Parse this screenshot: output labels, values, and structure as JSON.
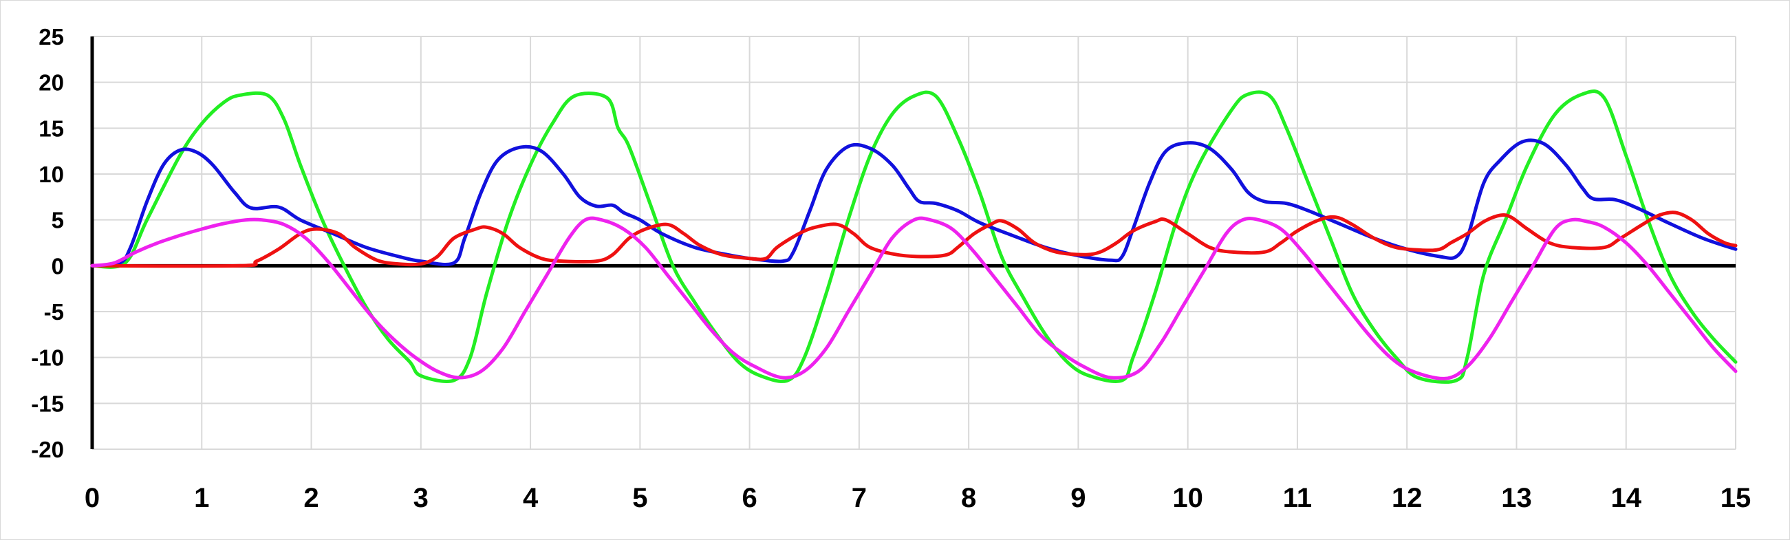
{
  "chart_data": {
    "type": "line",
    "title": "",
    "xlabel": "",
    "ylabel": "",
    "xlim": [
      0,
      15
    ],
    "ylim": [
      -20,
      25
    ],
    "x_ticks": [
      "0",
      "1",
      "2",
      "3",
      "4",
      "5",
      "6",
      "7",
      "8",
      "9",
      "10",
      "11",
      "12",
      "13",
      "14",
      "15"
    ],
    "y_ticks": [
      "25",
      "20",
      "15",
      "10",
      "5",
      "0",
      "-5",
      "-10",
      "-15",
      "-20"
    ],
    "grid": true,
    "legend": "none",
    "colors": {
      "grid": "#d9d9d9",
      "axis": "#000000",
      "red": "#ee1111",
      "green": "#22ee22",
      "blue": "#1111dd",
      "magenta": "#ee22ee"
    },
    "series": [
      {
        "color": "#22ee22",
        "points": [
          [
            0,
            0
          ],
          [
            0.3,
            0.3
          ],
          [
            0.5,
            5
          ],
          [
            0.8,
            12
          ],
          [
            1.0,
            15.5
          ],
          [
            1.2,
            17.8
          ],
          [
            1.35,
            18.6
          ],
          [
            1.6,
            18.6
          ],
          [
            1.75,
            16
          ],
          [
            1.9,
            11
          ],
          [
            2.1,
            5
          ],
          [
            2.3,
            0
          ],
          [
            2.5,
            -4.5
          ],
          [
            2.7,
            -8
          ],
          [
            2.9,
            -10.5
          ],
          [
            3.0,
            -12
          ],
          [
            3.3,
            -12.5
          ],
          [
            3.45,
            -10
          ],
          [
            3.6,
            -3
          ],
          [
            3.8,
            5
          ],
          [
            4.0,
            11
          ],
          [
            4.2,
            15.5
          ],
          [
            4.4,
            18.5
          ],
          [
            4.7,
            18.3
          ],
          [
            4.8,
            15
          ],
          [
            4.9,
            13
          ],
          [
            5.1,
            6.5
          ],
          [
            5.3,
            0
          ],
          [
            5.5,
            -4
          ],
          [
            5.7,
            -7.5
          ],
          [
            5.9,
            -10.5
          ],
          [
            6.1,
            -12
          ],
          [
            6.35,
            -12.5
          ],
          [
            6.5,
            -10
          ],
          [
            6.7,
            -3
          ],
          [
            6.9,
            5
          ],
          [
            7.1,
            12
          ],
          [
            7.3,
            16.5
          ],
          [
            7.5,
            18.5
          ],
          [
            7.7,
            18.5
          ],
          [
            7.9,
            14
          ],
          [
            8.1,
            8
          ],
          [
            8.3,
            1
          ],
          [
            8.5,
            -3.5
          ],
          [
            8.7,
            -7.5
          ],
          [
            8.9,
            -10.5
          ],
          [
            9.1,
            -12
          ],
          [
            9.4,
            -12.5
          ],
          [
            9.5,
            -10
          ],
          [
            9.7,
            -3
          ],
          [
            9.9,
            5
          ],
          [
            10.1,
            11
          ],
          [
            10.4,
            17
          ],
          [
            10.55,
            18.7
          ],
          [
            10.75,
            18.5
          ],
          [
            10.9,
            15
          ],
          [
            11.1,
            9
          ],
          [
            11.3,
            3
          ],
          [
            11.5,
            -3
          ],
          [
            11.7,
            -7
          ],
          [
            11.9,
            -10
          ],
          [
            12.1,
            -12.2
          ],
          [
            12.45,
            -12.5
          ],
          [
            12.55,
            -10
          ],
          [
            12.7,
            -1
          ],
          [
            12.9,
            5
          ],
          [
            13.1,
            11
          ],
          [
            13.35,
            16.5
          ],
          [
            13.6,
            18.7
          ],
          [
            13.8,
            18.3
          ],
          [
            14.0,
            12
          ],
          [
            14.2,
            5
          ],
          [
            14.4,
            -1
          ],
          [
            14.6,
            -5
          ],
          [
            14.8,
            -8
          ],
          [
            15.0,
            -10.5
          ]
        ]
      },
      {
        "color": "#1111dd",
        "points": [
          [
            0,
            0
          ],
          [
            0.25,
            0.3
          ],
          [
            0.35,
            2
          ],
          [
            0.5,
            7
          ],
          [
            0.65,
            11
          ],
          [
            0.8,
            12.6
          ],
          [
            0.95,
            12.4
          ],
          [
            1.1,
            11
          ],
          [
            1.3,
            8
          ],
          [
            1.45,
            6.3
          ],
          [
            1.7,
            6.4
          ],
          [
            1.9,
            5
          ],
          [
            2.2,
            3.5
          ],
          [
            2.5,
            2
          ],
          [
            2.8,
            1
          ],
          [
            3.0,
            0.5
          ],
          [
            3.3,
            0.3
          ],
          [
            3.4,
            3
          ],
          [
            3.55,
            8
          ],
          [
            3.7,
            11.5
          ],
          [
            3.9,
            12.9
          ],
          [
            4.1,
            12.5
          ],
          [
            4.3,
            10
          ],
          [
            4.45,
            7.5
          ],
          [
            4.6,
            6.5
          ],
          [
            4.75,
            6.6
          ],
          [
            4.85,
            5.8
          ],
          [
            5.0,
            5
          ],
          [
            5.2,
            3.5
          ],
          [
            5.5,
            2
          ],
          [
            5.8,
            1.2
          ],
          [
            6.0,
            0.8
          ],
          [
            6.3,
            0.5
          ],
          [
            6.4,
            1.5
          ],
          [
            6.55,
            6
          ],
          [
            6.7,
            10.5
          ],
          [
            6.9,
            13
          ],
          [
            7.1,
            12.8
          ],
          [
            7.3,
            11
          ],
          [
            7.45,
            8.5
          ],
          [
            7.55,
            7
          ],
          [
            7.7,
            6.8
          ],
          [
            7.9,
            6
          ],
          [
            8.1,
            4.7
          ],
          [
            8.4,
            3.3
          ],
          [
            8.7,
            2
          ],
          [
            9.0,
            1.1
          ],
          [
            9.3,
            0.6
          ],
          [
            9.4,
            1
          ],
          [
            9.5,
            4
          ],
          [
            9.65,
            9
          ],
          [
            9.8,
            12.5
          ],
          [
            10.0,
            13.4
          ],
          [
            10.2,
            12.8
          ],
          [
            10.4,
            10.5
          ],
          [
            10.55,
            8
          ],
          [
            10.7,
            7
          ],
          [
            10.9,
            6.8
          ],
          [
            11.1,
            6
          ],
          [
            11.4,
            4.5
          ],
          [
            11.7,
            3
          ],
          [
            12.0,
            1.8
          ],
          [
            12.3,
            1
          ],
          [
            12.45,
            1
          ],
          [
            12.55,
            3
          ],
          [
            12.7,
            9
          ],
          [
            12.85,
            11.5
          ],
          [
            13.05,
            13.5
          ],
          [
            13.25,
            13.3
          ],
          [
            13.45,
            11
          ],
          [
            13.6,
            8.5
          ],
          [
            13.7,
            7.3
          ],
          [
            13.9,
            7.2
          ],
          [
            14.1,
            6.3
          ],
          [
            14.4,
            4.6
          ],
          [
            14.7,
            3
          ],
          [
            15.0,
            1.8
          ]
        ]
      },
      {
        "color": "#ee1111",
        "points": [
          [
            0,
            0
          ],
          [
            1.35,
            0
          ],
          [
            1.5,
            0.5
          ],
          [
            1.7,
            1.8
          ],
          [
            1.9,
            3.5
          ],
          [
            2.05,
            4
          ],
          [
            2.25,
            3.5
          ],
          [
            2.4,
            2
          ],
          [
            2.6,
            0.6
          ],
          [
            2.8,
            0.2
          ],
          [
            3.0,
            0.2
          ],
          [
            3.15,
            1
          ],
          [
            3.3,
            3
          ],
          [
            3.5,
            4
          ],
          [
            3.6,
            4.2
          ],
          [
            3.75,
            3.5
          ],
          [
            3.9,
            2
          ],
          [
            4.1,
            0.8
          ],
          [
            4.3,
            0.5
          ],
          [
            4.6,
            0.5
          ],
          [
            4.75,
            1.2
          ],
          [
            4.9,
            3
          ],
          [
            5.05,
            4
          ],
          [
            5.25,
            4.5
          ],
          [
            5.4,
            3.5
          ],
          [
            5.55,
            2.2
          ],
          [
            5.75,
            1.2
          ],
          [
            6.0,
            0.8
          ],
          [
            6.15,
            0.8
          ],
          [
            6.25,
            2
          ],
          [
            6.45,
            3.5
          ],
          [
            6.6,
            4.2
          ],
          [
            6.8,
            4.5
          ],
          [
            6.95,
            3.5
          ],
          [
            7.1,
            2
          ],
          [
            7.35,
            1.2
          ],
          [
            7.6,
            1
          ],
          [
            7.8,
            1.2
          ],
          [
            7.9,
            2
          ],
          [
            8.05,
            3.5
          ],
          [
            8.2,
            4.5
          ],
          [
            8.3,
            4.9
          ],
          [
            8.45,
            4
          ],
          [
            8.6,
            2.5
          ],
          [
            8.8,
            1.5
          ],
          [
            9.05,
            1.2
          ],
          [
            9.2,
            1.5
          ],
          [
            9.35,
            2.5
          ],
          [
            9.5,
            3.8
          ],
          [
            9.7,
            4.8
          ],
          [
            9.8,
            5
          ],
          [
            10.0,
            3.5
          ],
          [
            10.2,
            2
          ],
          [
            10.4,
            1.5
          ],
          [
            10.7,
            1.5
          ],
          [
            10.85,
            2.5
          ],
          [
            11.0,
            3.8
          ],
          [
            11.2,
            5
          ],
          [
            11.35,
            5.3
          ],
          [
            11.5,
            4.5
          ],
          [
            11.7,
            3
          ],
          [
            11.9,
            2
          ],
          [
            12.15,
            1.7
          ],
          [
            12.3,
            1.8
          ],
          [
            12.4,
            2.5
          ],
          [
            12.55,
            3.5
          ],
          [
            12.7,
            4.8
          ],
          [
            12.85,
            5.5
          ],
          [
            12.95,
            5.3
          ],
          [
            13.1,
            4
          ],
          [
            13.3,
            2.5
          ],
          [
            13.5,
            2
          ],
          [
            13.8,
            2
          ],
          [
            13.95,
            3
          ],
          [
            14.15,
            4.5
          ],
          [
            14.3,
            5.5
          ],
          [
            14.45,
            5.8
          ],
          [
            14.6,
            5
          ],
          [
            14.75,
            3.5
          ],
          [
            14.9,
            2.5
          ],
          [
            15.0,
            2.2
          ]
        ]
      },
      {
        "color": "#ee22ee",
        "points": [
          [
            0,
            0
          ],
          [
            0.2,
            0.3
          ],
          [
            0.4,
            1.5
          ],
          [
            0.6,
            2.5
          ],
          [
            0.8,
            3.3
          ],
          [
            1.0,
            4
          ],
          [
            1.2,
            4.6
          ],
          [
            1.4,
            5
          ],
          [
            1.55,
            5
          ],
          [
            1.75,
            4.5
          ],
          [
            1.95,
            3
          ],
          [
            2.15,
            0.5
          ],
          [
            2.35,
            -2.5
          ],
          [
            2.55,
            -5.5
          ],
          [
            2.75,
            -8
          ],
          [
            2.95,
            -10
          ],
          [
            3.15,
            -11.5
          ],
          [
            3.35,
            -12.2
          ],
          [
            3.55,
            -11.5
          ],
          [
            3.75,
            -9
          ],
          [
            3.95,
            -5
          ],
          [
            4.15,
            -1
          ],
          [
            4.35,
            3
          ],
          [
            4.5,
            5
          ],
          [
            4.65,
            5
          ],
          [
            4.85,
            4
          ],
          [
            5.05,
            2
          ],
          [
            5.25,
            -1
          ],
          [
            5.45,
            -4
          ],
          [
            5.65,
            -7
          ],
          [
            5.85,
            -9.5
          ],
          [
            6.05,
            -11
          ],
          [
            6.3,
            -12.2
          ],
          [
            6.5,
            -11.5
          ],
          [
            6.7,
            -9
          ],
          [
            6.9,
            -5
          ],
          [
            7.1,
            -1
          ],
          [
            7.3,
            3
          ],
          [
            7.5,
            5
          ],
          [
            7.65,
            5
          ],
          [
            7.85,
            4
          ],
          [
            8.05,
            1.5
          ],
          [
            8.25,
            -1.5
          ],
          [
            8.45,
            -4.5
          ],
          [
            8.65,
            -7.5
          ],
          [
            8.85,
            -9.5
          ],
          [
            9.05,
            -11
          ],
          [
            9.3,
            -12.2
          ],
          [
            9.55,
            -11.5
          ],
          [
            9.75,
            -8.5
          ],
          [
            9.95,
            -4.5
          ],
          [
            10.15,
            -0.5
          ],
          [
            10.35,
            3.5
          ],
          [
            10.5,
            5
          ],
          [
            10.65,
            5
          ],
          [
            10.85,
            4
          ],
          [
            11.05,
            1.5
          ],
          [
            11.25,
            -1.5
          ],
          [
            11.45,
            -4.5
          ],
          [
            11.65,
            -7.5
          ],
          [
            11.85,
            -10
          ],
          [
            12.05,
            -11.5
          ],
          [
            12.35,
            -12.3
          ],
          [
            12.55,
            -11
          ],
          [
            12.75,
            -8
          ],
          [
            12.95,
            -4
          ],
          [
            13.15,
            0
          ],
          [
            13.35,
            4
          ],
          [
            13.5,
            5
          ],
          [
            13.65,
            4.8
          ],
          [
            13.8,
            4.2
          ],
          [
            14.0,
            2.5
          ],
          [
            14.2,
            0
          ],
          [
            14.4,
            -3
          ],
          [
            14.6,
            -6
          ],
          [
            14.8,
            -9
          ],
          [
            15.0,
            -11.5
          ]
        ]
      }
    ]
  }
}
